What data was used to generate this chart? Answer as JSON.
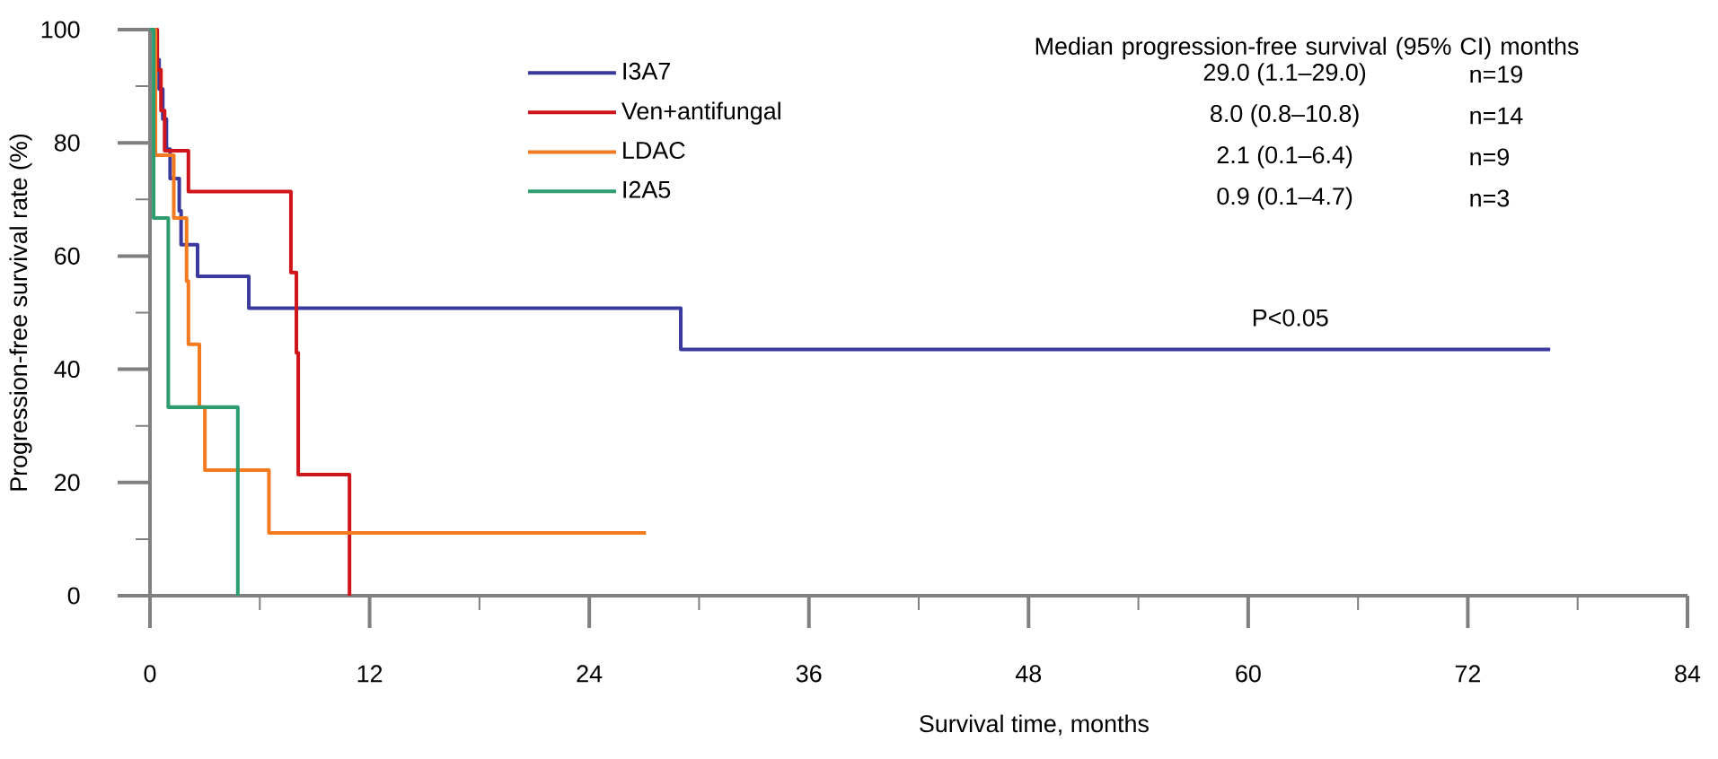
{
  "chart_data": {
    "type": "step",
    "xlabel": "Survival time, months",
    "ylabel": "Progression-free survival rate (%)",
    "series": [
      {
        "name": "I3A7",
        "color": "#3a3a9e",
        "x": [
          0,
          0.3,
          0.5,
          0.7,
          0.9,
          1.1,
          1.6,
          1.7,
          2.6,
          5.4,
          29.0,
          76.5
        ],
        "values": [
          100,
          94.7,
          89.5,
          84.2,
          78.9,
          73.7,
          68,
          62,
          56.4,
          50.8,
          43.5,
          43.5
        ]
      },
      {
        "name": "Ven+antifungal",
        "color": "#d0141c",
        "x": [
          0,
          0.4,
          0.6,
          0.8,
          2.1,
          7.7,
          8.0,
          8.1,
          10.9
        ],
        "values": [
          100,
          92.9,
          85.7,
          78.6,
          71.4,
          57.1,
          42.9,
          21.4,
          0
        ]
      },
      {
        "name": "LDAC",
        "color": "#f47a20",
        "x": [
          0,
          0.3,
          1.3,
          2.0,
          2.1,
          2.7,
          3.0,
          6.5,
          27.1
        ],
        "values": [
          100,
          77.8,
          66.7,
          55.6,
          44.4,
          33.3,
          22.2,
          11.1,
          11.1
        ]
      },
      {
        "name": "I2A5",
        "color": "#2e9c6e",
        "x": [
          0,
          0.2,
          1.0,
          4.8
        ],
        "values": [
          100,
          66.7,
          33.3,
          0
        ]
      }
    ],
    "xlim": [
      0,
      84
    ],
    "xticks": [
      0,
      {
        "value": 6,
        "label": null
      },
      12,
      {
        "value": 18,
        "label": null
      },
      24,
      {
        "value": 30,
        "label": null
      },
      36,
      {
        "value": 42,
        "label": null
      },
      48,
      {
        "value": 54,
        "label": null
      },
      60,
      {
        "value": 66,
        "label": null
      },
      72,
      {
        "value": 78,
        "label": null
      },
      84
    ],
    "ylim": [
      0,
      100
    ],
    "yticks": [
      0,
      {
        "value": 10,
        "label": null
      },
      20,
      {
        "value": 30,
        "label": null
      },
      40,
      {
        "value": 50,
        "label": null
      },
      60,
      {
        "value": 70,
        "label": null
      },
      80,
      {
        "value": 90,
        "label": null
      },
      100
    ],
    "legend": "top left",
    "annotations": [
      "Median progression-free survival (95% CI) months",
      "29.0 (1.1–29.0)",
      "n=19",
      "8.0 (0.8–10.8)",
      "n=14",
      "2.1 (0.1–6.4)",
      "n=9",
      "0.9 (0.1–4.7)",
      "n=3",
      "P<0.05"
    ]
  }
}
